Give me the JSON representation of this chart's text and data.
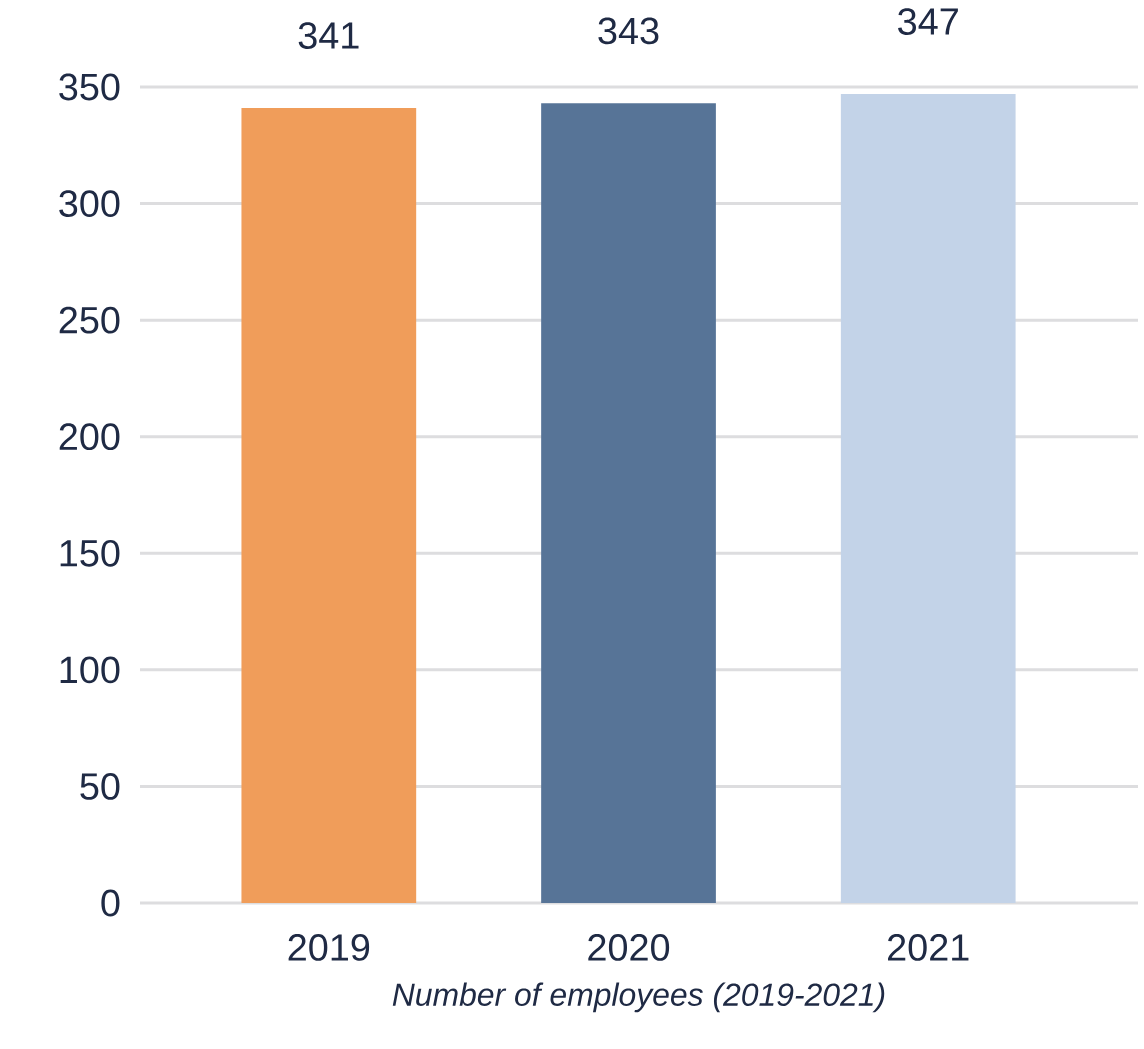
{
  "chart_data": {
    "type": "bar",
    "xlabel": "Number of employees (2019-2021)",
    "categories": [
      "2019",
      "2020",
      "2021"
    ],
    "values": [
      341,
      343,
      347
    ],
    "colors": [
      "#f09d5a",
      "#577497",
      "#c3d3e8"
    ],
    "ylim": [
      0,
      350
    ],
    "yticks": [
      0,
      50,
      100,
      150,
      200,
      250,
      300,
      350
    ],
    "grid": "y",
    "data_labels": true
  }
}
